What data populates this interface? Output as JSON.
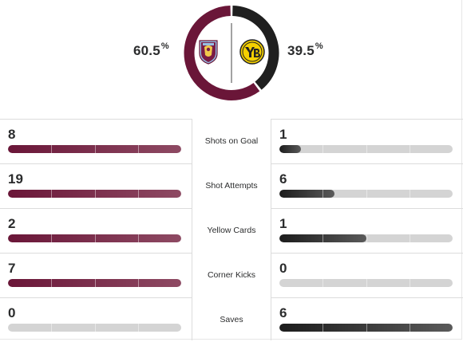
{
  "possession": {
    "home_pct": "60.5",
    "away_pct": "39.5",
    "pct_symbol": "%",
    "home_fraction": 0.605,
    "away_fraction": 0.395,
    "home_icon": "aston-villa-crest-icon",
    "away_icon": "young-boys-crest-icon"
  },
  "colors": {
    "home": "#6a1638",
    "away": "#1f1f1f",
    "track": "#d4d4d4"
  },
  "stats": [
    {
      "label": "Shots on Goal",
      "home": "8",
      "away": "1",
      "home_fraction": 1.0,
      "away_fraction": 0.125
    },
    {
      "label": "Shot Attempts",
      "home": "19",
      "away": "6",
      "home_fraction": 1.0,
      "away_fraction": 0.316
    },
    {
      "label": "Yellow Cards",
      "home": "2",
      "away": "1",
      "home_fraction": 1.0,
      "away_fraction": 0.5
    },
    {
      "label": "Corner Kicks",
      "home": "7",
      "away": "0",
      "home_fraction": 1.0,
      "away_fraction": 0.0
    },
    {
      "label": "Saves",
      "home": "0",
      "away": "6",
      "home_fraction": 0.0,
      "away_fraction": 1.0
    }
  ]
}
